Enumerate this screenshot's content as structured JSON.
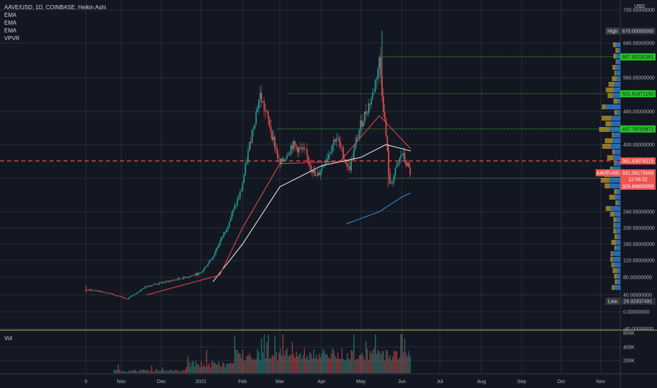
{
  "legend": {
    "symbol": "AAVE/USD, 1D, COINBASE, Heikin Ashi",
    "indicators": [
      "EMA",
      "EMA",
      "EMA",
      "VPVR"
    ]
  },
  "volume_label": "Vol",
  "chart_data": {
    "type": "candlestick",
    "title": "AAVE/USD, 1D, COINBASE, Heikin Ashi",
    "currency_label": "USD",
    "x_ticks": [
      "5",
      "Nov",
      "Dec",
      "2021",
      "Feb",
      "Mar",
      "Apr",
      "May",
      "Jun",
      "Jul",
      "Aug",
      "Sep",
      "Oct",
      "Nov"
    ],
    "x_tick_dates": [
      "2020-10-05",
      "2020-11-01",
      "2020-12-01",
      "2021-01-01",
      "2021-02-01",
      "2021-03-01",
      "2021-04-01",
      "2021-05-01",
      "2021-06-01",
      "2021-07-01",
      "2021-08-01",
      "2021-09-01",
      "2021-10-01",
      "2021-11-01"
    ],
    "y_ticks": [
      "720.00000000",
      "640.00000000",
      "560.00000000",
      "480.00000000",
      "400.00000000",
      "320.00000000",
      "240.00000000",
      "200.00000000",
      "160.00000000",
      "120.00000000",
      "80.00000000",
      "40.00000000",
      "0.00000000",
      "-40.00000000"
    ],
    "price_scale": "log",
    "price_labels": {
      "high": {
        "tag": "High",
        "value": "670.00000000"
      },
      "low": {
        "tag": "Low",
        "value": "26.02937491"
      },
      "levels": [
        "607.92231361",
        "521.81471150",
        "437.79753872",
        "320.77349683"
      ],
      "red_line": "361.43074215",
      "current": {
        "tag": "AAVEUSD",
        "value": "331.06175000",
        "countdown": "12:06:32"
      },
      "prev": "326.84800000"
    },
    "ohlc_key_points": [
      {
        "date": "2020-10-05",
        "value": 52
      },
      {
        "date": "2020-10-15",
        "value": 49
      },
      {
        "date": "2020-10-25",
        "value": 42
      },
      {
        "date": "2020-11-05",
        "value": 30
      },
      {
        "date": "2020-11-20",
        "value": 60
      },
      {
        "date": "2020-12-05",
        "value": 70
      },
      {
        "date": "2020-12-20",
        "value": 80
      },
      {
        "date": "2021-01-01",
        "value": 90
      },
      {
        "date": "2021-01-10",
        "value": 130
      },
      {
        "date": "2021-01-20",
        "value": 200
      },
      {
        "date": "2021-01-31",
        "value": 290
      },
      {
        "date": "2021-02-08",
        "value": 430
      },
      {
        "date": "2021-02-14",
        "value": 520
      },
      {
        "date": "2021-02-22",
        "value": 440
      },
      {
        "date": "2021-03-01",
        "value": 350
      },
      {
        "date": "2021-03-10",
        "value": 400
      },
      {
        "date": "2021-03-20",
        "value": 380
      },
      {
        "date": "2021-03-28",
        "value": 320
      },
      {
        "date": "2021-04-05",
        "value": 370
      },
      {
        "date": "2021-04-12",
        "value": 420
      },
      {
        "date": "2021-04-22",
        "value": 340
      },
      {
        "date": "2021-05-01",
        "value": 450
      },
      {
        "date": "2021-05-10",
        "value": 520
      },
      {
        "date": "2021-05-15",
        "value": 600
      },
      {
        "date": "2021-05-20",
        "value": 420
      },
      {
        "date": "2021-05-23",
        "value": 300
      },
      {
        "date": "2021-06-01",
        "value": 380
      },
      {
        "date": "2021-06-08",
        "value": 330
      }
    ],
    "ema_series": [
      {
        "color": "#e5e5e5",
        "points": [
          {
            "date": "2021-01-10",
            "value": 70
          },
          {
            "date": "2021-02-01",
            "value": 160
          },
          {
            "date": "2021-03-01",
            "value": 300
          },
          {
            "date": "2021-04-01",
            "value": 350
          },
          {
            "date": "2021-05-01",
            "value": 370
          },
          {
            "date": "2021-05-20",
            "value": 400
          },
          {
            "date": "2021-06-08",
            "value": 385
          }
        ]
      },
      {
        "color": "#e04848",
        "points": [
          {
            "date": "2020-11-20",
            "value": 40
          },
          {
            "date": "2020-12-15",
            "value": 60
          },
          {
            "date": "2021-01-15",
            "value": 85
          },
          {
            "date": "2021-02-01",
            "value": 200
          },
          {
            "date": "2021-03-01",
            "value": 355
          },
          {
            "date": "2021-04-15",
            "value": 360
          },
          {
            "date": "2021-05-15",
            "value": 470
          },
          {
            "date": "2021-06-08",
            "value": 390
          }
        ]
      },
      {
        "color": "#2e86de",
        "points": [
          {
            "date": "2021-04-20",
            "value": 210
          },
          {
            "date": "2021-05-15",
            "value": 240
          },
          {
            "date": "2021-06-01",
            "value": 275
          },
          {
            "date": "2021-06-08",
            "value": 285
          }
        ]
      }
    ],
    "volume_axis": [
      "600K",
      "400K",
      "200K"
    ],
    "colors": {
      "up": "#26a69a",
      "down": "#ef5350",
      "background": "#131722",
      "grid": "#2a2e39",
      "vpvr_up": "#2e7fd6",
      "vpvr_down": "#c9a227"
    }
  }
}
